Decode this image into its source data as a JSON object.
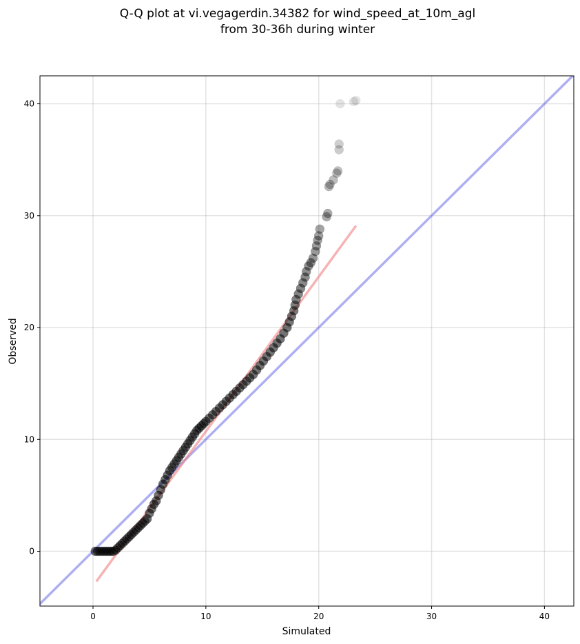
{
  "chart_data": {
    "type": "scatter",
    "title_line1": "Q-Q plot at vi.vegagerdin.34382 for wind_speed_at_10m_agl",
    "title_line2": "from 30-36h during winter",
    "xlabel": "Simulated",
    "ylabel": "Observed",
    "xlim": [
      -4.7,
      42.6
    ],
    "ylim": [
      -4.9,
      42.5
    ],
    "xticks": [
      0,
      10,
      20,
      30,
      40
    ],
    "yticks": [
      0,
      10,
      20,
      30,
      40
    ],
    "xtick_labels": [
      "0",
      "10",
      "20",
      "30",
      "40"
    ],
    "ytick_labels": [
      "0",
      "10",
      "20",
      "30",
      "40"
    ],
    "grid": true,
    "identity_line": {
      "slope": 1,
      "intercept": 0,
      "color": "#6b6bea"
    },
    "fit_line": {
      "x": [
        0.3,
        23.3
      ],
      "y": [
        -2.7,
        29.1
      ],
      "color": "#f08080"
    },
    "point_color": "#000000",
    "quantile_points": [
      [
        0.2,
        0.0
      ],
      [
        0.4,
        0.0
      ],
      [
        0.6,
        0.0
      ],
      [
        0.8,
        0.0
      ],
      [
        1.0,
        0.0
      ],
      [
        1.2,
        0.0
      ],
      [
        1.4,
        0.0
      ],
      [
        1.6,
        0.0
      ],
      [
        1.8,
        0.0
      ],
      [
        2.0,
        0.1
      ],
      [
        2.2,
        0.3
      ],
      [
        2.4,
        0.5
      ],
      [
        2.6,
        0.7
      ],
      [
        2.8,
        0.9
      ],
      [
        3.0,
        1.1
      ],
      [
        3.2,
        1.3
      ],
      [
        3.4,
        1.5
      ],
      [
        3.6,
        1.7
      ],
      [
        3.8,
        1.9
      ],
      [
        4.0,
        2.1
      ],
      [
        4.2,
        2.3
      ],
      [
        4.4,
        2.5
      ],
      [
        4.6,
        2.7
      ],
      [
        4.8,
        2.9
      ],
      [
        5.0,
        3.4
      ],
      [
        5.2,
        3.8
      ],
      [
        5.4,
        4.2
      ],
      [
        5.6,
        4.5
      ],
      [
        5.8,
        5.0
      ],
      [
        6.0,
        5.5
      ],
      [
        6.2,
        6.0
      ],
      [
        6.4,
        6.4
      ],
      [
        6.6,
        6.8
      ],
      [
        6.8,
        7.2
      ],
      [
        7.0,
        7.5
      ],
      [
        7.2,
        7.8
      ],
      [
        7.4,
        8.1
      ],
      [
        7.6,
        8.4
      ],
      [
        7.8,
        8.7
      ],
      [
        8.0,
        9.0
      ],
      [
        8.2,
        9.3
      ],
      [
        8.4,
        9.6
      ],
      [
        8.6,
        9.9
      ],
      [
        8.8,
        10.2
      ],
      [
        9.0,
        10.5
      ],
      [
        9.2,
        10.8
      ],
      [
        9.4,
        11.0
      ],
      [
        9.6,
        11.2
      ],
      [
        9.8,
        11.4
      ],
      [
        10.0,
        11.6
      ],
      [
        10.3,
        11.9
      ],
      [
        10.6,
        12.2
      ],
      [
        10.9,
        12.5
      ],
      [
        11.2,
        12.8
      ],
      [
        11.5,
        13.1
      ],
      [
        11.8,
        13.4
      ],
      [
        12.1,
        13.7
      ],
      [
        12.4,
        14.0
      ],
      [
        12.7,
        14.3
      ],
      [
        13.0,
        14.6
      ],
      [
        13.3,
        14.9
      ],
      [
        13.6,
        15.2
      ],
      [
        13.9,
        15.5
      ],
      [
        14.2,
        15.8
      ],
      [
        14.5,
        16.2
      ],
      [
        14.8,
        16.6
      ],
      [
        15.1,
        17.0
      ],
      [
        15.4,
        17.4
      ],
      [
        15.7,
        17.8
      ],
      [
        16.0,
        18.2
      ],
      [
        16.3,
        18.6
      ],
      [
        16.6,
        19.0
      ],
      [
        16.9,
        19.5
      ],
      [
        17.2,
        20.0
      ],
      [
        17.4,
        20.5
      ],
      [
        17.6,
        21.0
      ],
      [
        17.8,
        21.5
      ],
      [
        17.9,
        22.0
      ],
      [
        18.0,
        22.5
      ],
      [
        18.2,
        23.0
      ],
      [
        18.4,
        23.5
      ],
      [
        18.6,
        24.0
      ],
      [
        18.8,
        24.5
      ],
      [
        18.9,
        25.0
      ],
      [
        19.1,
        25.5
      ],
      [
        19.3,
        25.8
      ],
      [
        19.5,
        26.2
      ],
      [
        19.7,
        26.8
      ],
      [
        19.8,
        27.3
      ],
      [
        19.9,
        27.8
      ],
      [
        20.0,
        28.2
      ],
      [
        20.1,
        28.8
      ],
      [
        20.7,
        29.9
      ],
      [
        20.8,
        30.2
      ],
      [
        20.9,
        32.6
      ],
      [
        21.0,
        32.8
      ],
      [
        21.3,
        33.2
      ],
      [
        21.6,
        33.8
      ],
      [
        21.7,
        34.0
      ],
      [
        21.8,
        35.9
      ],
      [
        21.8,
        36.4
      ],
      [
        21.9,
        40.0
      ],
      [
        23.1,
        40.2
      ],
      [
        23.3,
        40.3
      ]
    ]
  }
}
